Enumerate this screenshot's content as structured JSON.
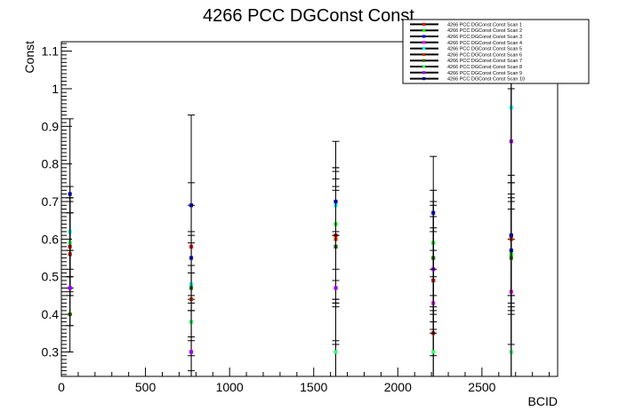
{
  "chart_data": {
    "type": "scatter",
    "title": "4266 PCC DGConst Const",
    "xlabel": "BCID",
    "ylabel": "Const",
    "xlim": [
      0,
      2950
    ],
    "ylim": [
      0.235,
      1.125
    ],
    "x_ticks": [
      0,
      500,
      1000,
      1500,
      2000,
      2500
    ],
    "x_tick_labels": [
      "0",
      "500",
      "1000",
      "1500",
      "2000",
      "2500"
    ],
    "y_ticks": [
      0.3,
      0.4,
      0.5,
      0.6,
      0.7,
      0.8,
      0.9,
      1.0,
      1.1
    ],
    "y_tick_labels": [
      "0.3",
      "0.4",
      "0.5",
      "0.6",
      "0.7",
      "0.8",
      "0.9",
      "1",
      "1.1"
    ],
    "legend_position": "top-right",
    "x": [
      51,
      772,
      1631,
      2211,
      2674
    ],
    "series": [
      {
        "name": "4266 PCC DGConst Const  Scan  1",
        "color": "#ff0000",
        "values": [
          0.58,
          0.58,
          0.61,
          0.35,
          0.61
        ],
        "err": [
          0.12,
          0.17,
          0.17,
          0.15,
          0.16
        ]
      },
      {
        "name": "4266 PCC DGConst Const  Scan  2",
        "color": "#00ff00",
        "values": [
          0.59,
          0.38,
          0.64,
          0.59,
          0.56
        ],
        "err": [
          0.12,
          0.15,
          0.15,
          0.14,
          0.15
        ]
      },
      {
        "name": "4266 PCC DGConst Const  Scan  3",
        "color": "#0000ff",
        "values": [
          0.56,
          0.55,
          0.58,
          0.49,
          0.57
        ],
        "err": [
          0.11,
          0.14,
          0.16,
          0.13,
          0.15
        ]
      },
      {
        "name": "4266 PCC DGConst Const  Scan  4",
        "color": "#ff00ff",
        "values": [
          0.47,
          0.3,
          0.47,
          0.43,
          0.46
        ],
        "err": [
          0.1,
          0.14,
          0.15,
          0.14,
          0.14
        ]
      },
      {
        "name": "4266 PCC DGConst Const  Scan  5",
        "color": "#00ffff",
        "values": [
          0.62,
          0.48,
          0.69,
          0.55,
          0.95
        ],
        "err": [
          0.12,
          0.14,
          0.17,
          0.15,
          0.2
        ]
      },
      {
        "name": "4266 PCC DGConst Const  Scan  6",
        "color": "#cc3300",
        "values": [
          0.56,
          0.44,
          0.6,
          0.49,
          0.6
        ],
        "err": [
          0.11,
          0.15,
          0.16,
          0.14,
          0.15
        ]
      },
      {
        "name": "4266 PCC DGConst Const  Scan  7",
        "color": "#336600",
        "values": [
          0.4,
          0.47,
          0.58,
          0.55,
          0.55
        ],
        "err": [
          0.1,
          0.14,
          0.15,
          0.14,
          0.15
        ]
      },
      {
        "name": "4266 PCC DGConst Const  Scan  8",
        "color": "#33ff66",
        "values": [
          0.59,
          0.38,
          0.3,
          0.3,
          0.3
        ],
        "err": [
          0.12,
          0.13,
          0.13,
          0.12,
          0.13
        ]
      },
      {
        "name": "4266 PCC DGConst Const  Scan  9",
        "color": "#9900ff",
        "values": [
          0.47,
          0.3,
          0.47,
          0.52,
          0.86
        ],
        "err": [
          0.1,
          0.13,
          0.14,
          0.14,
          0.18
        ]
      },
      {
        "name": "4266 PCC DGConst Const  Scan  10",
        "color": "#000099",
        "values": [
          0.72,
          0.69,
          0.7,
          0.67,
          0.61
        ],
        "err": [
          0.2,
          0.24,
          0.09,
          0.15,
          0.39
        ]
      }
    ]
  }
}
